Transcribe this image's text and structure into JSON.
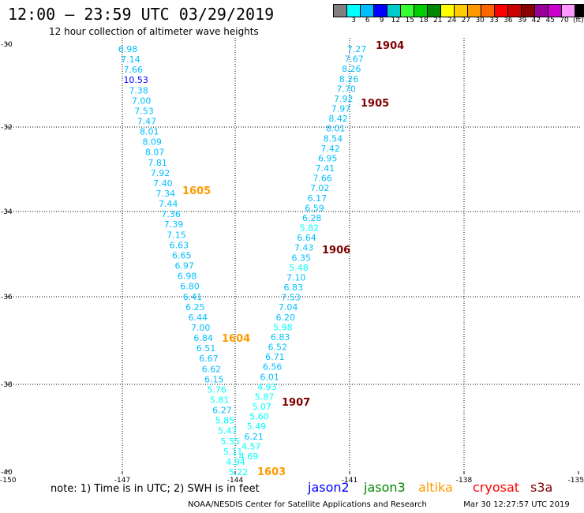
{
  "header": {
    "title": "12:00 – 23:59 UTC 03/29/2019",
    "subtitle": "12 hour collection of altimeter wave heights"
  },
  "colorbar": {
    "swatches": [
      "#808080",
      "#00ffff",
      "#00bfff",
      "#0000ff",
      "#00cccc",
      "#33ff33",
      "#00cc00",
      "#008800",
      "#ffff00",
      "#ffcc00",
      "#ff9900",
      "#ff6600",
      "#ff0000",
      "#cc0000",
      "#880000",
      "#990099",
      "#cc00cc",
      "#ff99ff",
      "#000000"
    ],
    "ticks": [
      "3",
      "6",
      "9",
      "12",
      "15",
      "18",
      "21",
      "24",
      "27",
      "30",
      "33",
      "36",
      "39",
      "42",
      "45",
      "70",
      "(ft)"
    ]
  },
  "map": {
    "lon_ticks": [
      "-150",
      "-147",
      "-144",
      "-141",
      "-138",
      "-135"
    ],
    "lat_ticks": [
      "-30",
      "-32",
      "-34",
      "-36",
      "-38",
      "-40"
    ]
  },
  "tracks": [
    {
      "name": "track-a",
      "values": [
        "6.98",
        "7.14",
        "7.66",
        "10.53",
        "7.38",
        "7.00",
        "7.53",
        "7.47",
        "8.01",
        "8.09",
        "8.07",
        "7.81",
        "7.92",
        "7.40",
        "7.34",
        "7.44",
        "7.36",
        "7.39",
        "7.15",
        "6.63",
        "6.65",
        "6.97",
        "6.98",
        "6.80",
        "6.41",
        "6.25",
        "6.44",
        "7.00",
        "6.84",
        "6.51",
        "6.67",
        "6.62",
        "6.15",
        "5.76",
        "5.81",
        "6.27",
        "5.85",
        "5.47",
        "5.55",
        "5.11",
        "4.94",
        "5.22"
      ]
    },
    {
      "name": "track-b",
      "values": [
        "7.27",
        "7.67",
        "8.26",
        "8.26",
        "7.70",
        "7.92",
        "7.97",
        "8.42",
        "8.01",
        "8.54",
        "7.42",
        "6.95",
        "7.41",
        "7.66",
        "7.02",
        "6.17",
        "6.59",
        "6.28",
        "5.82",
        "6.64",
        "7.43",
        "6.35",
        "5.48",
        "7.10",
        "6.83",
        "7.53",
        "7.04",
        "6.20",
        "5.98",
        "6.83",
        "6.52",
        "6.71",
        "6.56",
        "6.01",
        "4.93",
        "5.87",
        "5.07",
        "5.60",
        "5.49",
        "6.21",
        "4.57",
        "4.69"
      ]
    }
  ],
  "time_labels": [
    {
      "text": "1904",
      "color": "#800000"
    },
    {
      "text": "1905",
      "color": "#800000"
    },
    {
      "text": "1605",
      "color": "#ff9900"
    },
    {
      "text": "1906",
      "color": "#800000"
    },
    {
      "text": "1604",
      "color": "#ff9900"
    },
    {
      "text": "1907",
      "color": "#800000"
    },
    {
      "text": "1603",
      "color": "#ff9900"
    }
  ],
  "footer": {
    "note": "note: 1) Time is in UTC; 2) SWH is in feet",
    "satellites": [
      {
        "text": "jason2",
        "color": "#0000ff"
      },
      {
        "text": "jason3",
        "color": "#008800"
      },
      {
        "text": "altika",
        "color": "#ff9900"
      },
      {
        "text": "cryosat",
        "color": "#ff0000"
      },
      {
        "text": "s3a",
        "color": "#800000"
      }
    ],
    "credit": "NOAA/NESDIS Center for Satellite Applications and Research",
    "timestamp": "Mar 30 12:27:57 UTC 2019"
  }
}
